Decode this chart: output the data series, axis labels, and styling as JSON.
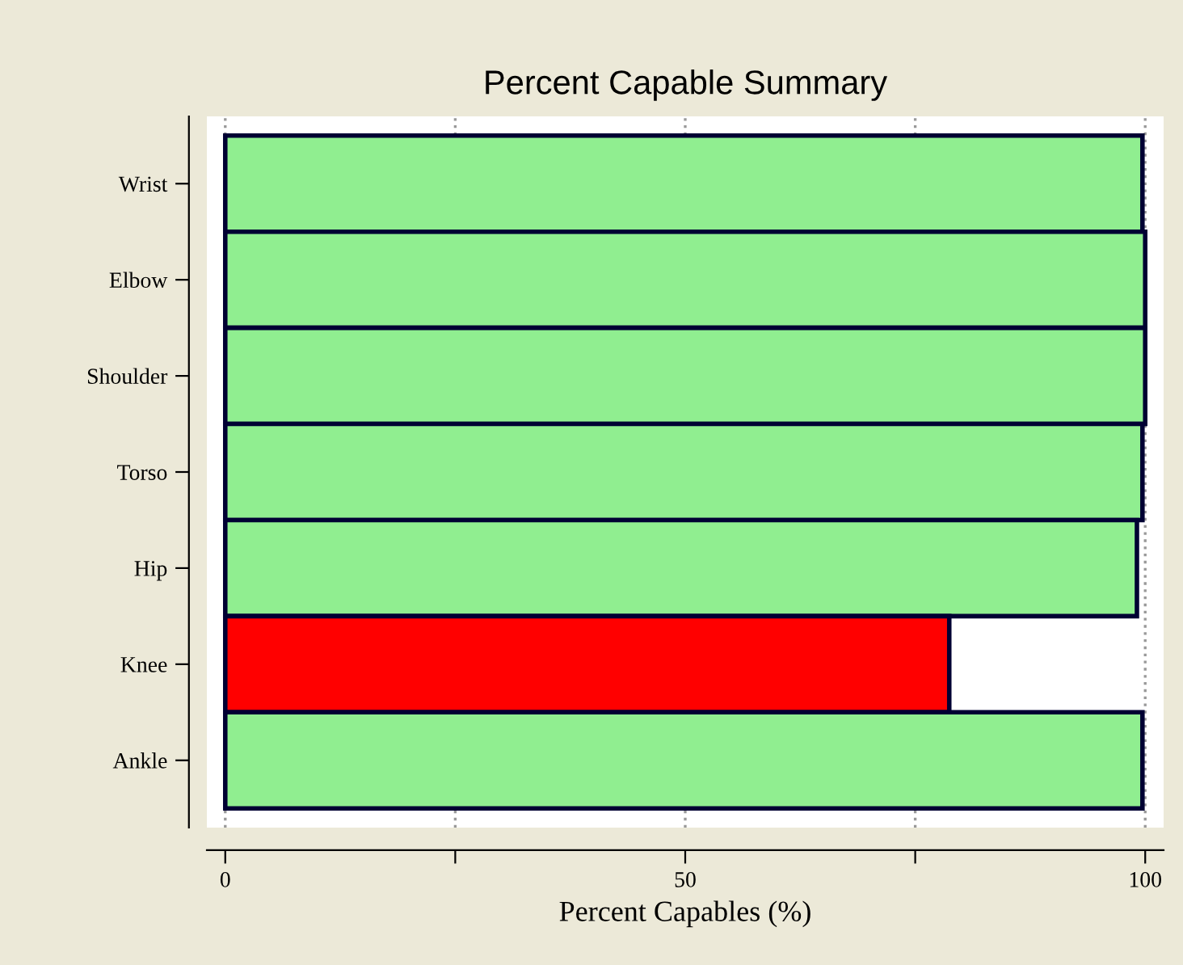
{
  "chart_data": {
    "type": "bar",
    "orientation": "horizontal",
    "title": "Percent Capable Summary",
    "xlabel": "Percent Capables (%)",
    "categories": [
      "Wrist",
      "Elbow",
      "Shoulder",
      "Torso",
      "Hip",
      "Knee",
      "Ankle"
    ],
    "values": [
      99.7,
      100,
      100,
      99.7,
      99.1,
      78.7,
      99.7
    ],
    "colors": [
      "#90ee90",
      "#90ee90",
      "#90ee90",
      "#90ee90",
      "#90ee90",
      "#ff0000",
      "#90ee90"
    ],
    "xlim": [
      -2,
      102
    ],
    "xticks": [
      0,
      {
        "value": 25,
        "label": null
      },
      50,
      {
        "value": 75,
        "label": null
      },
      100
    ],
    "grid": "x"
  }
}
